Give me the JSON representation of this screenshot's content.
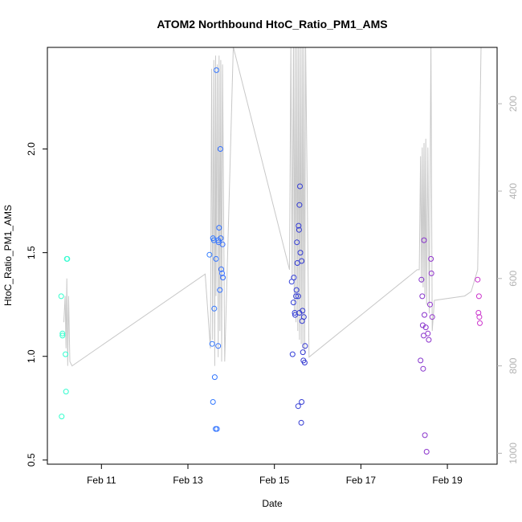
{
  "chart_data": {
    "type": "scatter",
    "title": "ATOM2 Northbound HtoC_Ratio_PM1_AMS",
    "xlabel": "Date",
    "ylabel": "HtoC_Ratio_PM1_AMS",
    "x_ticks": [
      "Feb 11",
      "Feb 13",
      "Feb 15",
      "Feb 17",
      "Feb 19"
    ],
    "x_tick_values": [
      11,
      13,
      15,
      17,
      19
    ],
    "xlim": [
      9.75,
      20.15
    ],
    "y_ticks": [
      "0.5",
      "1.0",
      "1.5",
      "2.0"
    ],
    "y_tick_values": [
      0.5,
      1.0,
      1.5,
      2.0
    ],
    "ylim": [
      0.48,
      2.49
    ],
    "y2_ticks": [
      "200",
      "400",
      "600",
      "800",
      "1000"
    ],
    "y2_tick_values": [
      200,
      400,
      600,
      800,
      1000
    ],
    "y2lim": [
      1025,
      71
    ],
    "grid": false,
    "colors": {
      "point_ramp": [
        "#33ffcc",
        "#33ccff",
        "#3366ff",
        "#3333cc",
        "#6633cc",
        "#cc33cc"
      ],
      "altitude_line": "#c8c8c8"
    },
    "series": [
      {
        "values_x": [
          10.07,
          10.08,
          10.1,
          10.1,
          10.17,
          10.18,
          10.2,
          10.21,
          13.5,
          13.56,
          13.58,
          13.58,
          13.62,
          13.64,
          13.65,
          13.66,
          13.67,
          13.7,
          13.7,
          13.71,
          13.72,
          13.74,
          13.75,
          13.76,
          13.77,
          13.79,
          13.8,
          13.81,
          13.61,
          13.6,
          15.4,
          15.42,
          15.44,
          15.45,
          15.47,
          15.48,
          15.5,
          15.51,
          15.52,
          15.53,
          15.55,
          15.56,
          15.57,
          15.58,
          15.59,
          15.6,
          15.62,
          15.63,
          15.64,
          15.65,
          15.66,
          15.67,
          15.68,
          15.7,
          15.71,
          15.55,
          15.58,
          15.63,
          18.38,
          18.4,
          18.42,
          18.44,
          18.45,
          18.47,
          18.48,
          18.5,
          18.52,
          18.55,
          18.57,
          18.6,
          18.62,
          18.63,
          18.65,
          18.46,
          18.43,
          19.7,
          19.72,
          19.73,
          19.74,
          19.75
        ],
        "values_y": [
          1.29,
          0.71,
          1.11,
          1.1,
          1.01,
          0.83,
          1.47,
          1.47,
          1.49,
          1.06,
          1.57,
          0.78,
          0.9,
          0.65,
          1.47,
          2.38,
          0.65,
          1.56,
          1.05,
          1.55,
          1.62,
          1.32,
          2.0,
          1.57,
          1.42,
          1.4,
          1.54,
          1.38,
          1.23,
          1.56,
          1.36,
          1.01,
          1.26,
          1.38,
          1.21,
          1.2,
          1.29,
          1.32,
          1.55,
          1.45,
          0.76,
          1.63,
          1.61,
          1.73,
          1.82,
          1.5,
          0.68,
          1.46,
          1.17,
          1.22,
          1.02,
          0.98,
          1.19,
          0.97,
          1.05,
          1.29,
          1.21,
          0.78,
          0.98,
          1.37,
          1.29,
          0.94,
          1.1,
          1.2,
          0.62,
          1.14,
          0.54,
          1.11,
          1.08,
          1.25,
          1.47,
          1.4,
          1.19,
          1.56,
          1.15,
          1.37,
          1.21,
          1.29,
          1.19,
          1.16
        ]
      }
    ],
    "altitude_track": {
      "x": [
        10.13,
        10.16,
        10.18,
        10.2,
        10.22,
        10.24,
        10.27,
        10.32,
        13.4,
        13.52,
        13.55,
        13.57,
        13.6,
        13.62,
        13.64,
        13.65,
        13.68,
        13.7,
        13.72,
        13.74,
        13.76,
        13.78,
        13.8,
        13.85,
        14.05,
        15.35,
        15.38,
        15.41,
        15.44,
        15.46,
        15.48,
        15.5,
        15.52,
        15.54,
        15.56,
        15.58,
        15.6,
        15.62,
        15.64,
        15.66,
        15.68,
        15.7,
        15.72,
        15.8,
        18.3,
        18.35,
        18.38,
        18.4,
        18.42,
        18.44,
        18.46,
        18.48,
        18.5,
        18.52,
        18.55,
        18.58,
        18.62,
        18.65,
        18.7,
        19.4,
        19.55,
        19.7,
        19.78,
        19.82
      ],
      "altitude": [
        700,
        640,
        760,
        600,
        800,
        640,
        790,
        800,
        590,
        760,
        120,
        740,
        100,
        800,
        90,
        640,
        110,
        780,
        90,
        720,
        100,
        790,
        110,
        790,
        70,
        580,
        60,
        600,
        60,
        680,
        60,
        700,
        60,
        720,
        60,
        740,
        60,
        750,
        60,
        760,
        60,
        770,
        60,
        780,
        580,
        580,
        320,
        610,
        300,
        620,
        290,
        640,
        280,
        660,
        300,
        680,
        60,
        720,
        650,
        640,
        630,
        580,
        60,
        60
      ]
    }
  }
}
